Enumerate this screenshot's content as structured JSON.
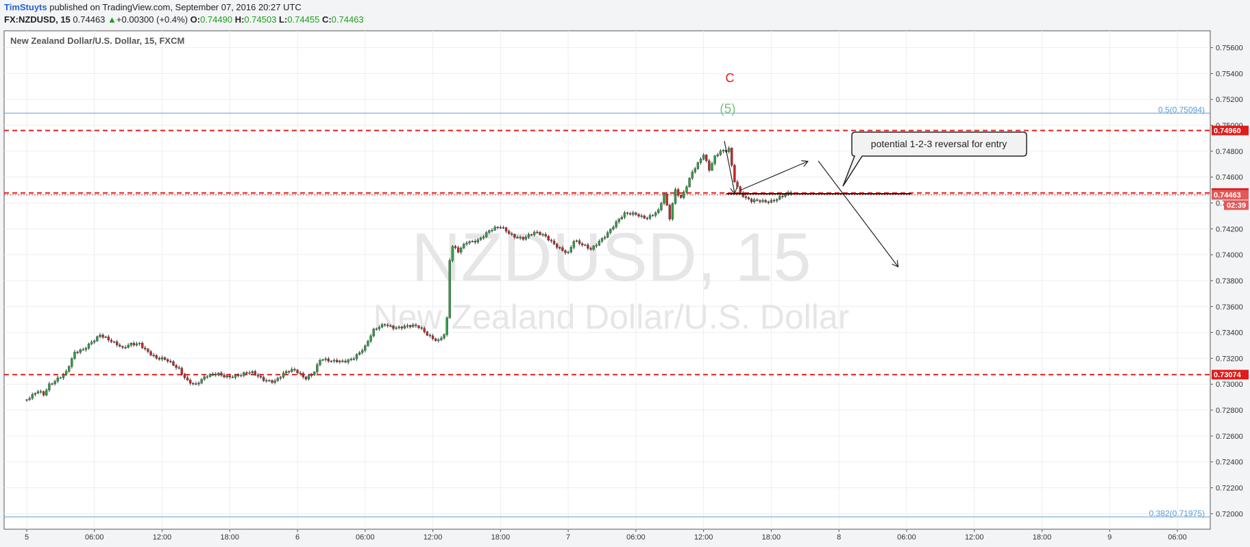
{
  "header": {
    "author": "TimStuyts",
    "published_text": " published on TradingView.com, September 07, 2016 20:27 UTC",
    "symbol": "FX:NZDUSD, 15",
    "last": "0.74463",
    "change_arrow": "▲",
    "change": "+0.00300 (+0.4%)",
    "o_label": "O:",
    "o": "0.74490",
    "h_label": "H:",
    "h": "0.74503",
    "l_label": "L:",
    "l": "0.74455",
    "c_label": "C:",
    "c": "0.74463"
  },
  "chart_data": {
    "type": "candlestick",
    "title": "New Zealand Dollar/U.S. Dollar, 15, FXCM",
    "watermark_symbol": "NZDUSD, 15",
    "watermark_name": "New Zealand Dollar/U.S. Dollar",
    "ylim": [
      0.7188,
      0.7573
    ],
    "y_ticks": [
      "0.75600",
      "0.75400",
      "0.75200",
      "0.75000",
      "0.74800",
      "0.74600",
      "0.74400",
      "0.74200",
      "0.74000",
      "0.73800",
      "0.73600",
      "0.73400",
      "0.73200",
      "0.73000",
      "0.72800",
      "0.72600",
      "0.72400",
      "0.72200",
      "0.72000"
    ],
    "x_ticks": [
      {
        "label": "5",
        "t": 0
      },
      {
        "label": "06:00",
        "t": 24
      },
      {
        "label": "12:00",
        "t": 48
      },
      {
        "label": "18:00",
        "t": 72
      },
      {
        "label": "6",
        "t": 96
      },
      {
        "label": "06:00",
        "t": 120
      },
      {
        "label": "12:00",
        "t": 144
      },
      {
        "label": "18:00",
        "t": 168
      },
      {
        "label": "7",
        "t": 192
      },
      {
        "label": "06:00",
        "t": 216
      },
      {
        "label": "12:00",
        "t": 240
      },
      {
        "label": "18:00",
        "t": 264
      },
      {
        "label": "8",
        "t": 288
      },
      {
        "label": "06:00",
        "t": 312
      },
      {
        "label": "12:00",
        "t": 336
      },
      {
        "label": "18:00",
        "t": 360
      },
      {
        "label": "9",
        "t": 384
      },
      {
        "label": "06:00",
        "t": 408
      }
    ],
    "close_path": [
      [
        0,
        0.7288
      ],
      [
        2,
        0.729
      ],
      [
        4,
        0.7293
      ],
      [
        6,
        0.7291
      ],
      [
        8,
        0.73
      ],
      [
        11,
        0.7306
      ],
      [
        14,
        0.731
      ],
      [
        17,
        0.7323
      ],
      [
        20,
        0.7325
      ],
      [
        23,
        0.7333
      ],
      [
        26,
        0.734
      ],
      [
        28,
        0.7337
      ],
      [
        31,
        0.7331
      ],
      [
        34,
        0.7326
      ],
      [
        37,
        0.7331
      ],
      [
        40,
        0.7333
      ],
      [
        43,
        0.7326
      ],
      [
        46,
        0.7319
      ],
      [
        50,
        0.7317
      ],
      [
        54,
        0.7313
      ],
      [
        57,
        0.7304
      ],
      [
        60,
        0.7299
      ],
      [
        64,
        0.7305
      ],
      [
        68,
        0.7309
      ],
      [
        72,
        0.7307
      ],
      [
        76,
        0.7306
      ],
      [
        80,
        0.7308
      ],
      [
        84,
        0.7305
      ],
      [
        88,
        0.7303
      ],
      [
        92,
        0.7308
      ],
      [
        95,
        0.731
      ],
      [
        99,
        0.7306
      ],
      [
        102,
        0.7311
      ],
      [
        104,
        0.7319
      ],
      [
        108,
        0.7316
      ],
      [
        112,
        0.7318
      ],
      [
        116,
        0.7322
      ],
      [
        120,
        0.7328
      ],
      [
        123,
        0.734
      ],
      [
        127,
        0.7347
      ],
      [
        131,
        0.7345
      ],
      [
        135,
        0.7344
      ],
      [
        139,
        0.7343
      ],
      [
        143,
        0.7338
      ],
      [
        146,
        0.7335
      ],
      [
        148,
        0.7339
      ],
      [
        149,
        0.735
      ],
      [
        150,
        0.7395
      ],
      [
        151,
        0.7405
      ],
      [
        153,
        0.7401
      ],
      [
        156,
        0.741
      ],
      [
        160,
        0.7413
      ],
      [
        164,
        0.7418
      ],
      [
        168,
        0.742
      ],
      [
        172,
        0.7416
      ],
      [
        176,
        0.7414
      ],
      [
        180,
        0.7416
      ],
      [
        184,
        0.7413
      ],
      [
        188,
        0.7408
      ],
      [
        192,
        0.7402
      ],
      [
        194,
        0.741
      ],
      [
        197,
        0.7406
      ],
      [
        200,
        0.7404
      ],
      [
        203,
        0.7412
      ],
      [
        206,
        0.7418
      ],
      [
        209,
        0.7424
      ],
      [
        212,
        0.743
      ],
      [
        216,
        0.7432
      ],
      [
        220,
        0.743
      ],
      [
        224,
        0.7433
      ],
      [
        226,
        0.7445
      ],
      [
        228,
        0.7427
      ],
      [
        230,
        0.745
      ],
      [
        232,
        0.7445
      ],
      [
        234,
        0.7455
      ],
      [
        236,
        0.7465
      ],
      [
        238,
        0.747
      ],
      [
        240,
        0.7476
      ],
      [
        242,
        0.7464
      ],
      [
        244,
        0.7475
      ],
      [
        246,
        0.7481
      ],
      [
        248,
        0.7482
      ],
      [
        249,
        0.7484
      ],
      [
        250,
        0.747
      ],
      [
        251,
        0.7458
      ],
      [
        253,
        0.7447
      ],
      [
        255,
        0.7442
      ],
      [
        257,
        0.744
      ],
      [
        260,
        0.7442
      ],
      [
        264,
        0.7443
      ],
      [
        268,
        0.7445
      ],
      [
        271,
        0.7446
      ]
    ],
    "horizontal_lines": [
      {
        "price": 0.75094,
        "label": "0.5(0.75094)",
        "style": "fib",
        "color": "#5b9bd5"
      },
      {
        "price": 0.7496,
        "label": "0.74960",
        "style": "dashed",
        "color": "#e01b1b"
      },
      {
        "price": 0.74477,
        "label": "0.74477",
        "style": "dashed",
        "color": "#e01b1b"
      },
      {
        "price": 0.73074,
        "label": "0.73074",
        "style": "dashed",
        "color": "#e01b1b"
      },
      {
        "price": 0.71975,
        "label": "0.382(0.71975)",
        "style": "fib",
        "color": "#5b9bd5"
      }
    ],
    "last_price": {
      "price": 0.74463,
      "label": "0.74463",
      "countdown": "02:39"
    },
    "annotations": {
      "wave_c": "C",
      "wave_5": "(5)",
      "callout": "potential 1-2-3 reversal for entry"
    },
    "colors": {
      "up": "#2ea043",
      "down": "#c62828",
      "wick": "#333333"
    }
  }
}
